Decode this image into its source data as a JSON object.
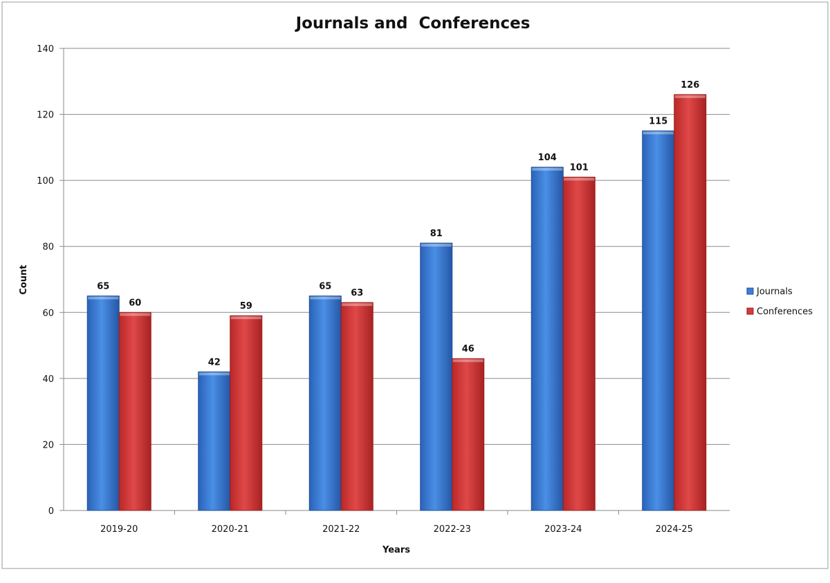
{
  "chart_data": {
    "type": "bar",
    "title": "Journals and  Conferences",
    "xlabel": "Years",
    "ylabel": "Count",
    "categories": [
      "2019-20",
      "2020-21",
      "2021-22",
      "2022-23",
      "2023-24",
      "2024-25"
    ],
    "series": [
      {
        "name": "Journals",
        "values": [
          65,
          42,
          65,
          81,
          104,
          115
        ],
        "color": "#3b7dd8"
      },
      {
        "name": "Conferences",
        "values": [
          60,
          59,
          63,
          46,
          101,
          126
        ],
        "color": "#d63a3a"
      }
    ],
    "ylim": [
      0,
      140
    ],
    "yticks": [
      0,
      20,
      40,
      60,
      80,
      100,
      120,
      140
    ],
    "grid": true,
    "legend_position": "right"
  }
}
